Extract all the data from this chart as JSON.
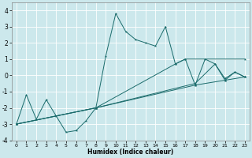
{
  "xlabel": "Humidex (Indice chaleur)",
  "xlim": [
    -0.5,
    23.5
  ],
  "ylim": [
    -4,
    4.5
  ],
  "xticks": [
    0,
    1,
    2,
    3,
    4,
    5,
    6,
    7,
    8,
    9,
    10,
    11,
    12,
    13,
    14,
    15,
    16,
    17,
    18,
    19,
    20,
    21,
    22,
    23
  ],
  "yticks": [
    -4,
    -3,
    -2,
    -1,
    0,
    1,
    2,
    3,
    4
  ],
  "bg_color": "#cce8ec",
  "line_color": "#1a6b6b",
  "grid_color": "#ffffff",
  "segments": [
    {
      "x": [
        0,
        1,
        2,
        3,
        4,
        5,
        6,
        7,
        8,
        9,
        10,
        11,
        12,
        13,
        14,
        15,
        16,
        17,
        18,
        19,
        20,
        21,
        22,
        23
      ],
      "y": [
        -3.0,
        -1.2,
        -2.7,
        -1.5,
        -2.5,
        -3.5,
        -3.4,
        -2.8,
        -2.0,
        1.2,
        3.8,
        2.7,
        2.2,
        2.0,
        1.8,
        3.0,
        0.7,
        1.0,
        -0.6,
        1.0,
        0.7,
        -0.3,
        0.2,
        -0.1
      ]
    },
    {
      "x": [
        0,
        8,
        16,
        17,
        23
      ],
      "y": [
        -3.0,
        -2.0,
        0.7,
        1.0,
        1.0
      ]
    },
    {
      "x": [
        0,
        8,
        18,
        20,
        21,
        22,
        23
      ],
      "y": [
        -3.0,
        -2.0,
        -0.5,
        0.7,
        -0.2,
        0.2,
        -0.1
      ]
    },
    {
      "x": [
        0,
        8,
        18,
        21,
        23
      ],
      "y": [
        -3.0,
        -2.0,
        -0.6,
        -0.3,
        -0.1
      ]
    }
  ]
}
